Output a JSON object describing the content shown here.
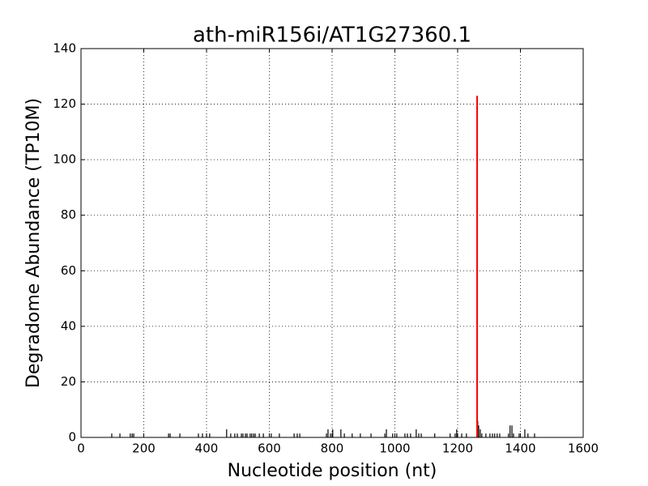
{
  "chart_data": {
    "type": "stem",
    "title": "ath-miR156i/AT1G27360.1",
    "x_label": "Nucleotide position (nt)",
    "y_label": "Degradome Abundance (TP10M)",
    "xlim": [
      0,
      1600
    ],
    "xticks": [
      0,
      200,
      400,
      600,
      800,
      1000,
      1200,
      1400,
      1600
    ],
    "ylim": [
      0,
      140
    ],
    "yticks": [
      0,
      20,
      40,
      60,
      80,
      100,
      120,
      140
    ],
    "grid": true,
    "series": [
      {
        "color": "#000000",
        "x": [
          98,
          124,
          157,
          163,
          168,
          279,
          284,
          315,
          374,
          387,
          400,
          410,
          464,
          477,
          490,
          498,
          511,
          516,
          524,
          529,
          539,
          544,
          550,
          555,
          568,
          581,
          606,
          632,
          679,
          689,
          697,
          782,
          787,
          795,
          802,
          828,
          839,
          864,
          890,
          924,
          968,
          973,
          993,
          1006,
          1032,
          1040,
          1050,
          1068,
          1076,
          1084,
          1127,
          1176,
          1192,
          1197,
          1213,
          1228,
          1264,
          1267,
          1272,
          1277,
          1290,
          1303,
          1311,
          1318,
          1326,
          1334,
          1362,
          1367,
          1373,
          1378,
          1396,
          1414,
          1424,
          1445
        ],
        "values": [
          1.4,
          1.4,
          1.4,
          1.4,
          1.4,
          1.4,
          1.4,
          1.4,
          1.4,
          1.4,
          1.4,
          1.4,
          2.9,
          1.4,
          1.4,
          1.4,
          1.4,
          1.4,
          1.4,
          1.4,
          1.4,
          1.4,
          1.4,
          1.4,
          1.4,
          1.4,
          1.4,
          1.4,
          1.4,
          1.4,
          1.4,
          1.4,
          2.9,
          1.4,
          2.9,
          2.9,
          1.4,
          1.4,
          1.4,
          1.4,
          1.4,
          2.9,
          1.4,
          1.4,
          1.4,
          1.4,
          1.4,
          2.9,
          1.4,
          1.4,
          1.4,
          1.4,
          1.4,
          2.9,
          1.4,
          1.4,
          6,
          4.3,
          2.9,
          1.4,
          1.4,
          1.4,
          1.4,
          1.4,
          1.4,
          1.4,
          1.4,
          4.3,
          4.3,
          1.4,
          1.4,
          2.9,
          1.4,
          1.4
        ]
      },
      {
        "color": "#ff0000",
        "x": [
          1262
        ],
        "values": [
          123
        ]
      }
    ]
  }
}
